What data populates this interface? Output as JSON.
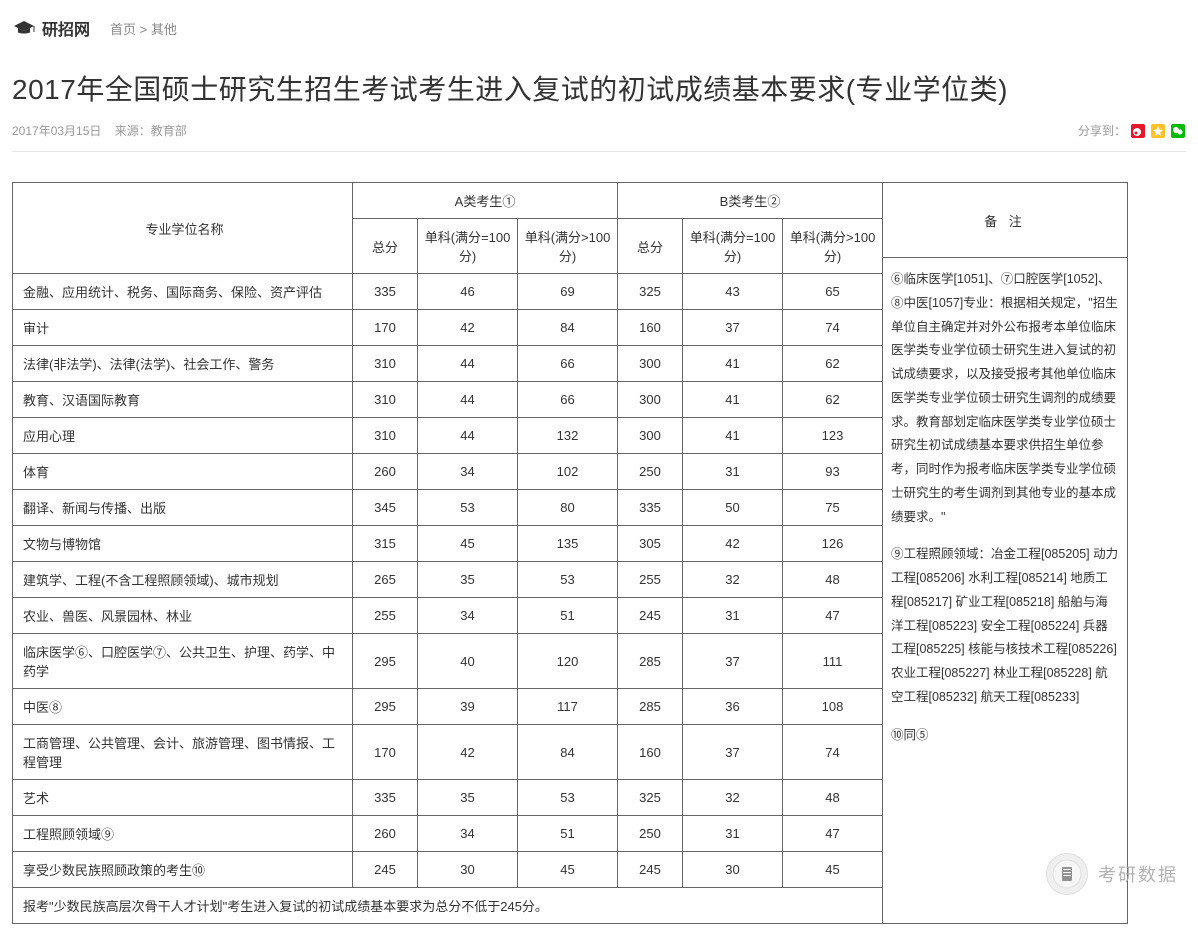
{
  "header": {
    "site_name": "研招网",
    "breadcrumb_home": "首页",
    "breadcrumb_sep": ">",
    "breadcrumb_current": "其他"
  },
  "page": {
    "title": "2017年全国硕士研究生招生考试考生进入复试的初试成绩基本要求(专业学位类)",
    "date": "2017年03月15日",
    "source_label": "来源：",
    "source": "教育部",
    "share_label": "分享到："
  },
  "share_icons": {
    "weibo_color": "#e6162d",
    "qzone_color": "#ffc028",
    "wechat_color": "#09bb07"
  },
  "table": {
    "headers": {
      "name": "专业学位名称",
      "groupA": "A类考生①",
      "groupB": "B类考生②",
      "notes": "备  注",
      "total": "总分",
      "sub100": "单科(满分=100分)",
      "subGt100": "单科(满分>100分)"
    },
    "rows": [
      {
        "name": "金融、应用统计、税务、国际商务、保险、资产评估",
        "a_total": "335",
        "a_s100": "46",
        "a_sgt": "69",
        "b_total": "325",
        "b_s100": "43",
        "b_sgt": "65"
      },
      {
        "name": "审计",
        "a_total": "170",
        "a_s100": "42",
        "a_sgt": "84",
        "b_total": "160",
        "b_s100": "37",
        "b_sgt": "74"
      },
      {
        "name": "法律(非法学)、法律(法学)、社会工作、警务",
        "a_total": "310",
        "a_s100": "44",
        "a_sgt": "66",
        "b_total": "300",
        "b_s100": "41",
        "b_sgt": "62"
      },
      {
        "name": "教育、汉语国际教育",
        "a_total": "310",
        "a_s100": "44",
        "a_sgt": "66",
        "b_total": "300",
        "b_s100": "41",
        "b_sgt": "62"
      },
      {
        "name": "应用心理",
        "a_total": "310",
        "a_s100": "44",
        "a_sgt": "132",
        "b_total": "300",
        "b_s100": "41",
        "b_sgt": "123"
      },
      {
        "name": "体育",
        "a_total": "260",
        "a_s100": "34",
        "a_sgt": "102",
        "b_total": "250",
        "b_s100": "31",
        "b_sgt": "93"
      },
      {
        "name": "翻译、新闻与传播、出版",
        "a_total": "345",
        "a_s100": "53",
        "a_sgt": "80",
        "b_total": "335",
        "b_s100": "50",
        "b_sgt": "75"
      },
      {
        "name": "文物与博物馆",
        "a_total": "315",
        "a_s100": "45",
        "a_sgt": "135",
        "b_total": "305",
        "b_s100": "42",
        "b_sgt": "126"
      },
      {
        "name": "建筑学、工程(不含工程照顾领域)、城市规划",
        "a_total": "265",
        "a_s100": "35",
        "a_sgt": "53",
        "b_total": "255",
        "b_s100": "32",
        "b_sgt": "48"
      },
      {
        "name": "农业、兽医、风景园林、林业",
        "a_total": "255",
        "a_s100": "34",
        "a_sgt": "51",
        "b_total": "245",
        "b_s100": "31",
        "b_sgt": "47"
      },
      {
        "name": "临床医学⑥、口腔医学⑦、公共卫生、护理、药学、中药学",
        "a_total": "295",
        "a_s100": "40",
        "a_sgt": "120",
        "b_total": "285",
        "b_s100": "37",
        "b_sgt": "111"
      },
      {
        "name": "中医⑧",
        "a_total": "295",
        "a_s100": "39",
        "a_sgt": "117",
        "b_total": "285",
        "b_s100": "36",
        "b_sgt": "108"
      },
      {
        "name": "工商管理、公共管理、会计、旅游管理、图书情报、工程管理",
        "a_total": "170",
        "a_s100": "42",
        "a_sgt": "84",
        "b_total": "160",
        "b_s100": "37",
        "b_sgt": "74"
      },
      {
        "name": "艺术",
        "a_total": "335",
        "a_s100": "35",
        "a_sgt": "53",
        "b_total": "325",
        "b_s100": "32",
        "b_sgt": "48"
      },
      {
        "name": "工程照顾领域⑨",
        "a_total": "260",
        "a_s100": "34",
        "a_sgt": "51",
        "b_total": "250",
        "b_s100": "31",
        "b_sgt": "47"
      },
      {
        "name": "享受少数民族照顾政策的考生⑩",
        "a_total": "245",
        "a_s100": "30",
        "a_sgt": "45",
        "b_total": "245",
        "b_s100": "30",
        "b_sgt": "45"
      }
    ],
    "footer_note": "报考\"少数民族高层次骨干人才计划\"考生进入复试的初试成绩基本要求为总分不低于245分。"
  },
  "notes": {
    "para1": "⑥临床医学[1051]、⑦口腔医学[1052]、⑧中医[1057]专业：根据相关规定，\"招生单位自主确定并对外公布报考本单位临床医学类专业学位硕士研究生进入复试的初试成绩要求，以及接受报考其他单位临床医学类专业学位硕士研究生调剂的成绩要求。教育部划定临床医学类专业学位硕士研究生初试成绩基本要求供招生单位参考，同时作为报考临床医学类专业学位硕士研究生的考生调剂到其他专业的基本成绩要求。\"",
    "para2": "⑨工程照顾领域：冶金工程[085205] 动力工程[085206] 水利工程[085214] 地质工程[085217] 矿业工程[085218] 船舶与海洋工程[085223] 安全工程[085224] 兵器工程[085225] 核能与核技术工程[085226] 农业工程[085227] 林业工程[085228] 航空工程[085232] 航天工程[085233]",
    "para3": "⑩同⑤"
  },
  "watermark": {
    "text": "考研数据"
  }
}
